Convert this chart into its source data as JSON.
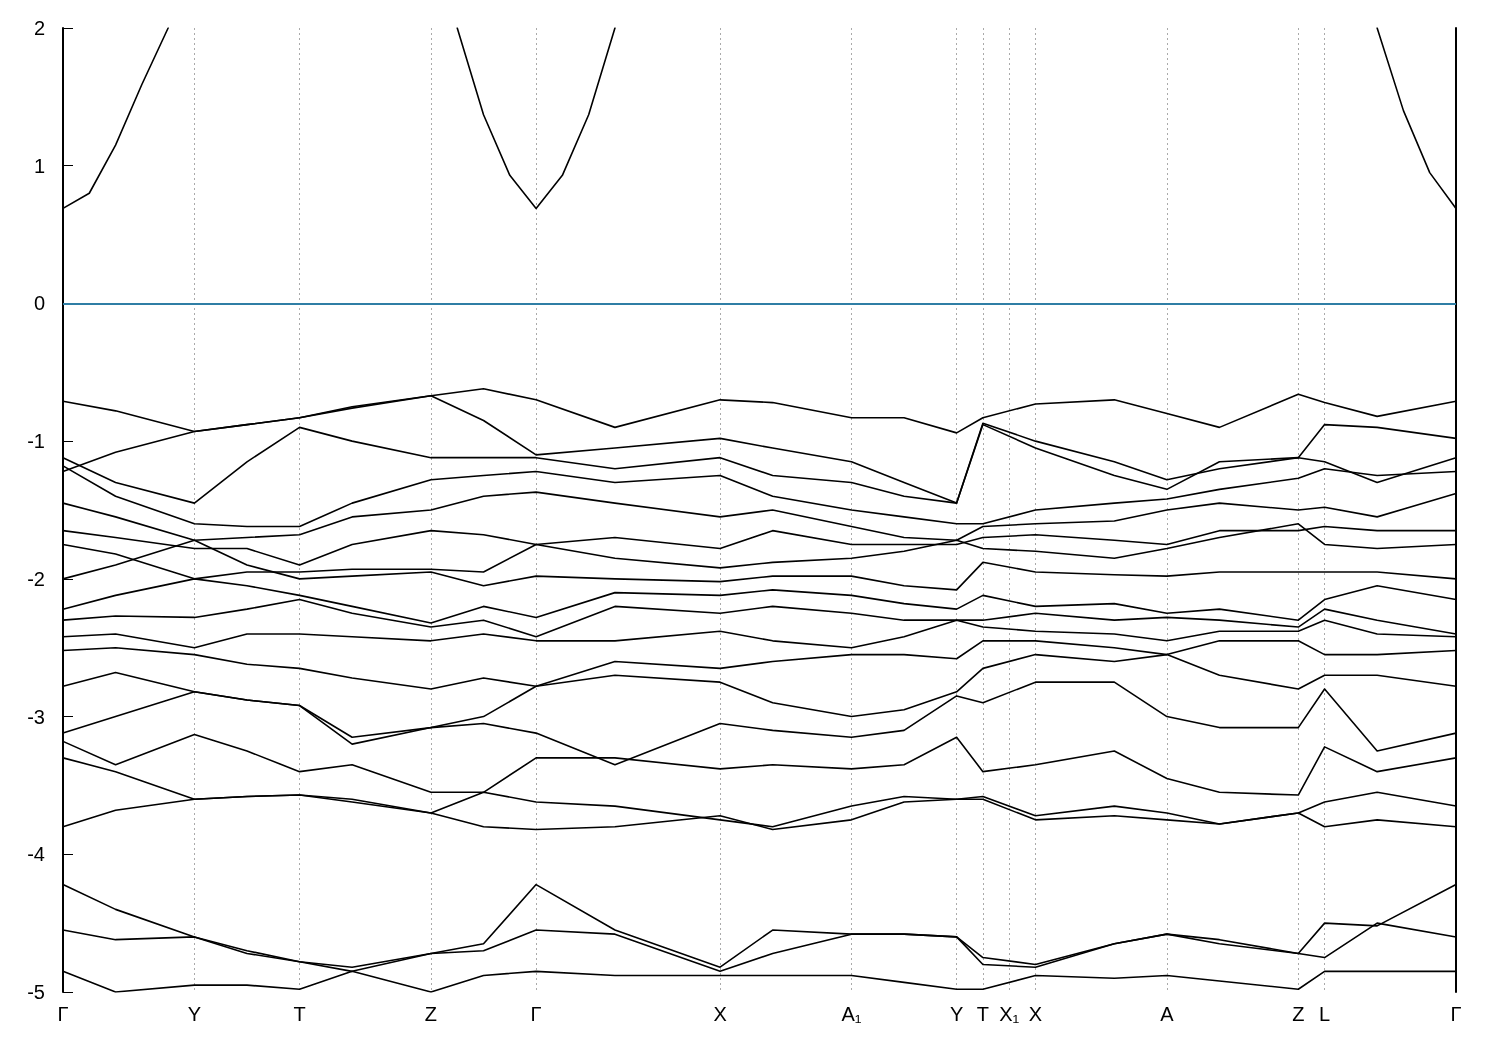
{
  "chart_data": {
    "type": "line",
    "marker": "none",
    "line_style": "solid",
    "grid": "x",
    "ylim": [
      -5,
      2
    ],
    "categories": [
      "Γ",
      null,
      null,
      null,
      null,
      "Y",
      null,
      null,
      null,
      "T",
      null,
      null,
      null,
      null,
      "Z",
      null,
      null,
      null,
      "Γ",
      null,
      null,
      null,
      null,
      null,
      null,
      "X",
      null,
      null,
      null,
      null,
      "A₁",
      null,
      null,
      null,
      "Y",
      "T",
      "X₁",
      "X",
      null,
      null,
      null,
      null,
      "A",
      null,
      null,
      null,
      null,
      "Z",
      "L",
      null,
      null,
      null,
      null,
      "Γ"
    ],
    "yticks": [
      -5,
      -4,
      -3,
      -2,
      -1,
      0,
      1,
      2
    ],
    "ref_lines": [
      {
        "axis": "y",
        "value": 0,
        "color": "#3fa9dd"
      }
    ],
    "series": [
      {
        "color": "#000000",
        "values": [
          0.69,
          0.8,
          1.15,
          1.59,
          2.0,
          null,
          null,
          null,
          null,
          null,
          null,
          null,
          null,
          null,
          null,
          null,
          null,
          null,
          null,
          null,
          null,
          null,
          null,
          null,
          null,
          null,
          null,
          null,
          null,
          null,
          null,
          null,
          null,
          null,
          null,
          null,
          null,
          null,
          null,
          null,
          null,
          null,
          null,
          null,
          null,
          null,
          null,
          null,
          null,
          null,
          null,
          null,
          null,
          null
        ]
      },
      {
        "color": "#000000",
        "values": [
          null,
          null,
          null,
          null,
          null,
          null,
          null,
          null,
          null,
          null,
          null,
          null,
          null,
          null,
          null,
          2.0,
          1.37,
          0.93,
          0.69,
          0.93,
          1.37,
          2.0,
          null,
          null,
          null,
          null,
          null,
          null,
          null,
          null,
          null,
          null,
          null,
          null,
          null,
          null,
          null,
          null,
          null,
          null,
          null,
          null,
          null,
          null,
          null,
          null,
          null,
          null,
          null,
          null,
          null,
          null,
          null,
          null
        ]
      },
      {
        "color": "#000000",
        "values": [
          null,
          null,
          null,
          null,
          null,
          null,
          null,
          null,
          null,
          null,
          null,
          null,
          null,
          null,
          null,
          null,
          null,
          null,
          null,
          null,
          null,
          null,
          null,
          null,
          null,
          null,
          null,
          null,
          null,
          null,
          null,
          null,
          null,
          null,
          null,
          null,
          null,
          null,
          null,
          null,
          null,
          null,
          null,
          null,
          null,
          null,
          null,
          null,
          null,
          null,
          2.0,
          1.4,
          0.95,
          0.69
        ]
      },
      {
        "color": "#000000",
        "values": [
          -0.71,
          null,
          -0.78,
          null,
          null,
          -0.93,
          null,
          -0.88,
          null,
          -0.83,
          null,
          -0.75,
          null,
          null,
          -0.67,
          null,
          -0.62,
          null,
          -0.7,
          null,
          null,
          -0.9,
          null,
          null,
          null,
          -0.7,
          null,
          -0.72,
          null,
          null,
          -0.83,
          null,
          -0.83,
          null,
          -0.94,
          -0.83,
          null,
          -0.73,
          null,
          null,
          -0.7,
          null,
          -0.8,
          null,
          -0.9,
          null,
          null,
          -0.66,
          -0.72,
          null,
          -0.82,
          null,
          null,
          -0.71
        ]
      },
      {
        "color": "#000000",
        "values": [
          -1.22,
          null,
          -1.08,
          null,
          null,
          -0.93,
          null,
          -0.88,
          null,
          -0.83,
          null,
          -0.76,
          null,
          null,
          -0.67,
          null,
          -0.85,
          null,
          -1.1,
          null,
          null,
          -1.05,
          null,
          null,
          null,
          -0.98,
          null,
          -1.05,
          null,
          null,
          -1.15,
          null,
          -1.3,
          null,
          -1.45,
          -0.87,
          null,
          -1.0,
          null,
          null,
          -1.15,
          null,
          -1.28,
          null,
          -1.2,
          null,
          null,
          -1.12,
          -0.88,
          null,
          -0.9,
          null,
          null,
          -0.98
        ]
      },
      {
        "color": "#000000",
        "values": [
          -1.12,
          null,
          -1.3,
          null,
          null,
          -1.45,
          null,
          -1.15,
          null,
          -0.9,
          null,
          -1.0,
          null,
          null,
          -1.12,
          null,
          -1.12,
          null,
          -1.12,
          null,
          null,
          -1.2,
          null,
          null,
          null,
          -1.12,
          null,
          -1.25,
          null,
          null,
          -1.3,
          null,
          -1.4,
          null,
          -1.45,
          -0.88,
          null,
          -1.05,
          null,
          null,
          -1.25,
          null,
          -1.35,
          null,
          -1.15,
          null,
          null,
          -1.12,
          -1.15,
          null,
          -1.3,
          null,
          null,
          -1.12
        ]
      },
      {
        "color": "#000000",
        "values": [
          -1.18,
          null,
          -1.4,
          null,
          null,
          -1.6,
          null,
          -1.62,
          null,
          -1.62,
          null,
          -1.45,
          null,
          null,
          -1.28,
          null,
          -1.25,
          null,
          -1.22,
          null,
          null,
          -1.3,
          null,
          null,
          null,
          -1.25,
          null,
          -1.4,
          null,
          null,
          -1.5,
          null,
          -1.55,
          null,
          -1.6,
          -1.6,
          null,
          -1.5,
          null,
          null,
          -1.45,
          null,
          -1.42,
          null,
          -1.35,
          null,
          null,
          -1.27,
          -1.2,
          null,
          -1.25,
          null,
          null,
          -1.22
        ]
      },
      {
        "color": "#000000",
        "values": [
          -1.45,
          null,
          -1.55,
          null,
          null,
          -1.72,
          null,
          -1.7,
          null,
          -1.68,
          null,
          -1.55,
          null,
          null,
          -1.5,
          null,
          -1.4,
          null,
          -1.37,
          null,
          null,
          -1.45,
          null,
          null,
          null,
          -1.55,
          null,
          -1.5,
          null,
          null,
          -1.62,
          null,
          -1.7,
          null,
          -1.72,
          -1.62,
          null,
          -1.6,
          null,
          null,
          -1.58,
          null,
          -1.5,
          null,
          -1.45,
          null,
          null,
          -1.5,
          -1.48,
          null,
          -1.55,
          null,
          null,
          -1.38
        ]
      },
      {
        "color": "#000000",
        "values": [
          -1.65,
          null,
          -1.7,
          null,
          null,
          -1.78,
          null,
          -1.78,
          null,
          -1.9,
          null,
          -1.75,
          null,
          null,
          -1.65,
          null,
          -1.68,
          null,
          -1.75,
          null,
          null,
          -1.7,
          null,
          null,
          null,
          -1.78,
          null,
          -1.65,
          null,
          null,
          -1.75,
          null,
          -1.75,
          null,
          -1.75,
          -1.7,
          null,
          -1.68,
          null,
          null,
          -1.72,
          null,
          -1.75,
          null,
          -1.65,
          null,
          null,
          -1.65,
          -1.62,
          null,
          -1.65,
          null,
          null,
          -1.65
        ]
      },
      {
        "color": "#000000",
        "values": [
          -1.75,
          null,
          -1.82,
          null,
          null,
          -2.0,
          null,
          -1.95,
          null,
          -1.95,
          null,
          -1.93,
          null,
          null,
          -1.93,
          null,
          -1.95,
          null,
          -1.75,
          null,
          null,
          -1.85,
          null,
          null,
          null,
          -1.92,
          null,
          -1.88,
          null,
          null,
          -1.85,
          null,
          -1.8,
          null,
          -1.72,
          -1.78,
          null,
          -1.8,
          null,
          null,
          -1.85,
          null,
          -1.78,
          null,
          -1.7,
          null,
          null,
          -1.6,
          -1.75,
          null,
          -1.78,
          null,
          null,
          -1.75
        ]
      },
      {
        "color": "#000000",
        "values": [
          -2.0,
          null,
          -1.9,
          null,
          null,
          -1.72,
          null,
          -1.9,
          null,
          -2.0,
          null,
          -1.98,
          null,
          null,
          -1.95,
          null,
          -2.05,
          null,
          -1.98,
          null,
          null,
          -2.0,
          null,
          null,
          null,
          -2.02,
          null,
          -1.98,
          null,
          null,
          -1.98,
          null,
          -2.05,
          null,
          -2.08,
          -1.88,
          null,
          -1.95,
          null,
          null,
          -1.97,
          null,
          -1.98,
          null,
          -1.95,
          null,
          null,
          -1.95,
          -1.95,
          null,
          -1.95,
          null,
          null,
          -2.0
        ]
      },
      {
        "color": "#000000",
        "values": [
          -2.22,
          null,
          -2.12,
          null,
          null,
          -2.0,
          null,
          -2.05,
          null,
          -2.12,
          null,
          -2.2,
          null,
          null,
          -2.32,
          null,
          -2.2,
          null,
          -2.28,
          null,
          null,
          -2.1,
          null,
          null,
          null,
          -2.12,
          null,
          -2.08,
          null,
          null,
          -2.12,
          null,
          -2.18,
          null,
          -2.22,
          -2.12,
          null,
          -2.2,
          null,
          null,
          -2.18,
          null,
          -2.25,
          null,
          -2.22,
          null,
          null,
          -2.3,
          -2.15,
          null,
          -2.05,
          null,
          null,
          -2.15
        ]
      },
      {
        "color": "#000000",
        "values": [
          -2.3,
          null,
          -2.27,
          null,
          null,
          -2.28,
          null,
          -2.22,
          null,
          -2.15,
          null,
          -2.25,
          null,
          null,
          -2.35,
          null,
          -2.3,
          null,
          -2.42,
          null,
          null,
          -2.2,
          null,
          null,
          null,
          -2.25,
          null,
          -2.2,
          null,
          null,
          -2.25,
          null,
          -2.3,
          null,
          -2.3,
          -2.3,
          null,
          -2.25,
          null,
          null,
          -2.3,
          null,
          -2.28,
          null,
          -2.3,
          null,
          null,
          -2.35,
          -2.22,
          null,
          -2.3,
          null,
          null,
          -2.4
        ]
      },
      {
        "color": "#000000",
        "values": [
          -2.42,
          null,
          -2.4,
          null,
          null,
          -2.5,
          null,
          -2.4,
          null,
          -2.4,
          null,
          -2.42,
          null,
          null,
          -2.45,
          null,
          -2.4,
          null,
          -2.45,
          null,
          null,
          -2.45,
          null,
          null,
          null,
          -2.38,
          null,
          -2.45,
          null,
          null,
          -2.5,
          null,
          -2.42,
          null,
          -2.3,
          -2.35,
          null,
          -2.38,
          null,
          null,
          -2.4,
          null,
          -2.45,
          null,
          -2.38,
          null,
          null,
          -2.38,
          -2.3,
          null,
          -2.4,
          null,
          null,
          -2.42
        ]
      },
      {
        "color": "#000000",
        "values": [
          -2.52,
          null,
          -2.5,
          null,
          null,
          -2.55,
          null,
          -2.62,
          null,
          -2.65,
          null,
          -2.72,
          null,
          null,
          -2.8,
          null,
          -2.72,
          null,
          -2.78,
          null,
          null,
          -2.6,
          null,
          null,
          null,
          -2.65,
          null,
          -2.6,
          null,
          null,
          -2.55,
          null,
          -2.55,
          null,
          -2.58,
          -2.45,
          null,
          -2.45,
          null,
          null,
          -2.5,
          null,
          -2.55,
          null,
          -2.45,
          null,
          null,
          -2.45,
          -2.55,
          null,
          -2.55,
          null,
          null,
          -2.52
        ]
      },
      {
        "color": "#000000",
        "values": [
          -2.78,
          null,
          -2.68,
          null,
          null,
          -2.82,
          null,
          -2.88,
          null,
          -2.92,
          null,
          -3.15,
          null,
          null,
          -3.08,
          null,
          -3.0,
          null,
          -2.78,
          null,
          null,
          -2.7,
          null,
          null,
          null,
          -2.75,
          null,
          -2.9,
          null,
          null,
          -3.0,
          null,
          -2.95,
          null,
          -2.82,
          -2.65,
          null,
          -2.55,
          null,
          null,
          -2.6,
          null,
          -2.55,
          null,
          -2.7,
          null,
          null,
          -2.8,
          -2.7,
          null,
          -2.7,
          null,
          null,
          -2.78
        ]
      },
      {
        "color": "#000000",
        "values": [
          -3.12,
          null,
          -3.0,
          null,
          null,
          -2.82,
          null,
          -2.88,
          null,
          -2.92,
          null,
          -3.2,
          null,
          null,
          -3.08,
          null,
          -3.05,
          null,
          -3.12,
          null,
          null,
          -3.35,
          null,
          null,
          null,
          -3.05,
          null,
          -3.1,
          null,
          null,
          -3.15,
          null,
          -3.1,
          null,
          -2.85,
          -2.9,
          null,
          -2.75,
          null,
          null,
          -2.75,
          null,
          -3.0,
          null,
          -3.08,
          null,
          null,
          -3.08,
          -2.8,
          null,
          -3.25,
          null,
          null,
          -3.12
        ]
      },
      {
        "color": "#000000",
        "values": [
          -3.18,
          null,
          -3.35,
          null,
          null,
          -3.13,
          null,
          -3.25,
          null,
          -3.4,
          null,
          -3.35,
          null,
          null,
          -3.55,
          null,
          -3.55,
          null,
          -3.3,
          null,
          null,
          -3.3,
          null,
          null,
          null,
          -3.38,
          null,
          -3.35,
          null,
          null,
          -3.38,
          null,
          -3.35,
          null,
          -3.15,
          -3.4,
          null,
          -3.35,
          null,
          null,
          -3.25,
          null,
          -3.45,
          null,
          -3.55,
          null,
          null,
          -3.57,
          -3.22,
          null,
          -3.4,
          null,
          null,
          -3.3
        ]
      },
      {
        "color": "#000000",
        "values": [
          -3.3,
          null,
          -3.4,
          null,
          null,
          -3.6,
          null,
          -3.58,
          null,
          -3.57,
          null,
          -3.62,
          null,
          null,
          -3.7,
          null,
          -3.55,
          null,
          -3.62,
          null,
          null,
          -3.65,
          null,
          null,
          null,
          -3.75,
          null,
          -3.8,
          null,
          null,
          -3.65,
          null,
          -3.58,
          null,
          -3.6,
          -3.58,
          null,
          -3.72,
          null,
          null,
          -3.65,
          null,
          -3.7,
          null,
          -3.78,
          null,
          null,
          -3.7,
          -3.62,
          null,
          -3.55,
          null,
          null,
          -3.65
        ]
      },
      {
        "color": "#000000",
        "values": [
          -3.8,
          null,
          -3.68,
          null,
          null,
          -3.6,
          null,
          -3.58,
          null,
          -3.57,
          null,
          -3.6,
          null,
          null,
          -3.7,
          null,
          -3.8,
          null,
          -3.82,
          null,
          null,
          -3.8,
          null,
          null,
          null,
          -3.72,
          null,
          -3.82,
          null,
          null,
          -3.75,
          null,
          -3.62,
          null,
          -3.6,
          -3.6,
          null,
          -3.75,
          null,
          null,
          -3.72,
          null,
          -3.75,
          null,
          -3.78,
          null,
          null,
          -3.7,
          -3.8,
          null,
          -3.75,
          null,
          null,
          -3.8
        ]
      },
      {
        "color": "#000000",
        "values": [
          -4.22,
          null,
          -4.4,
          null,
          null,
          -4.6,
          null,
          -4.72,
          null,
          -4.78,
          null,
          -4.82,
          null,
          null,
          -4.72,
          null,
          -4.65,
          null,
          -4.22,
          null,
          null,
          -4.55,
          null,
          null,
          null,
          -4.82,
          null,
          -4.55,
          null,
          null,
          -4.58,
          null,
          -4.58,
          null,
          -4.6,
          -4.75,
          null,
          -4.8,
          null,
          null,
          -4.65,
          null,
          -4.58,
          null,
          -4.65,
          null,
          null,
          -4.72,
          -4.5,
          null,
          -4.52,
          null,
          null,
          -4.22
        ]
      },
      {
        "color": "#000000",
        "values": [
          -4.55,
          null,
          -4.62,
          null,
          null,
          -4.6,
          null,
          -4.7,
          null,
          -4.78,
          null,
          -4.85,
          null,
          null,
          -4.72,
          null,
          -4.7,
          null,
          -4.55,
          null,
          null,
          -4.58,
          null,
          null,
          null,
          -4.85,
          null,
          -4.72,
          null,
          null,
          -4.58,
          null,
          -4.58,
          null,
          -4.6,
          -4.8,
          null,
          -4.82,
          null,
          null,
          -4.65,
          null,
          -4.58,
          null,
          -4.62,
          null,
          null,
          -4.72,
          -4.75,
          null,
          -4.5,
          null,
          null,
          -4.6
        ]
      },
      {
        "color": "#000000",
        "values": [
          -4.85,
          null,
          -5.0,
          null,
          null,
          -4.95,
          null,
          -4.95,
          null,
          -4.98,
          null,
          -4.85,
          null,
          null,
          -5.0,
          null,
          -4.88,
          null,
          -4.85,
          null,
          null,
          -4.88,
          null,
          null,
          null,
          -4.88,
          null,
          -4.88,
          null,
          null,
          -4.88,
          null,
          -4.93,
          null,
          -4.98,
          -4.98,
          null,
          -4.88,
          null,
          null,
          -4.9,
          null,
          -4.88,
          null,
          -4.92,
          null,
          null,
          -4.98,
          -4.85,
          null,
          -4.85,
          null,
          null,
          -4.85
        ]
      }
    ]
  }
}
